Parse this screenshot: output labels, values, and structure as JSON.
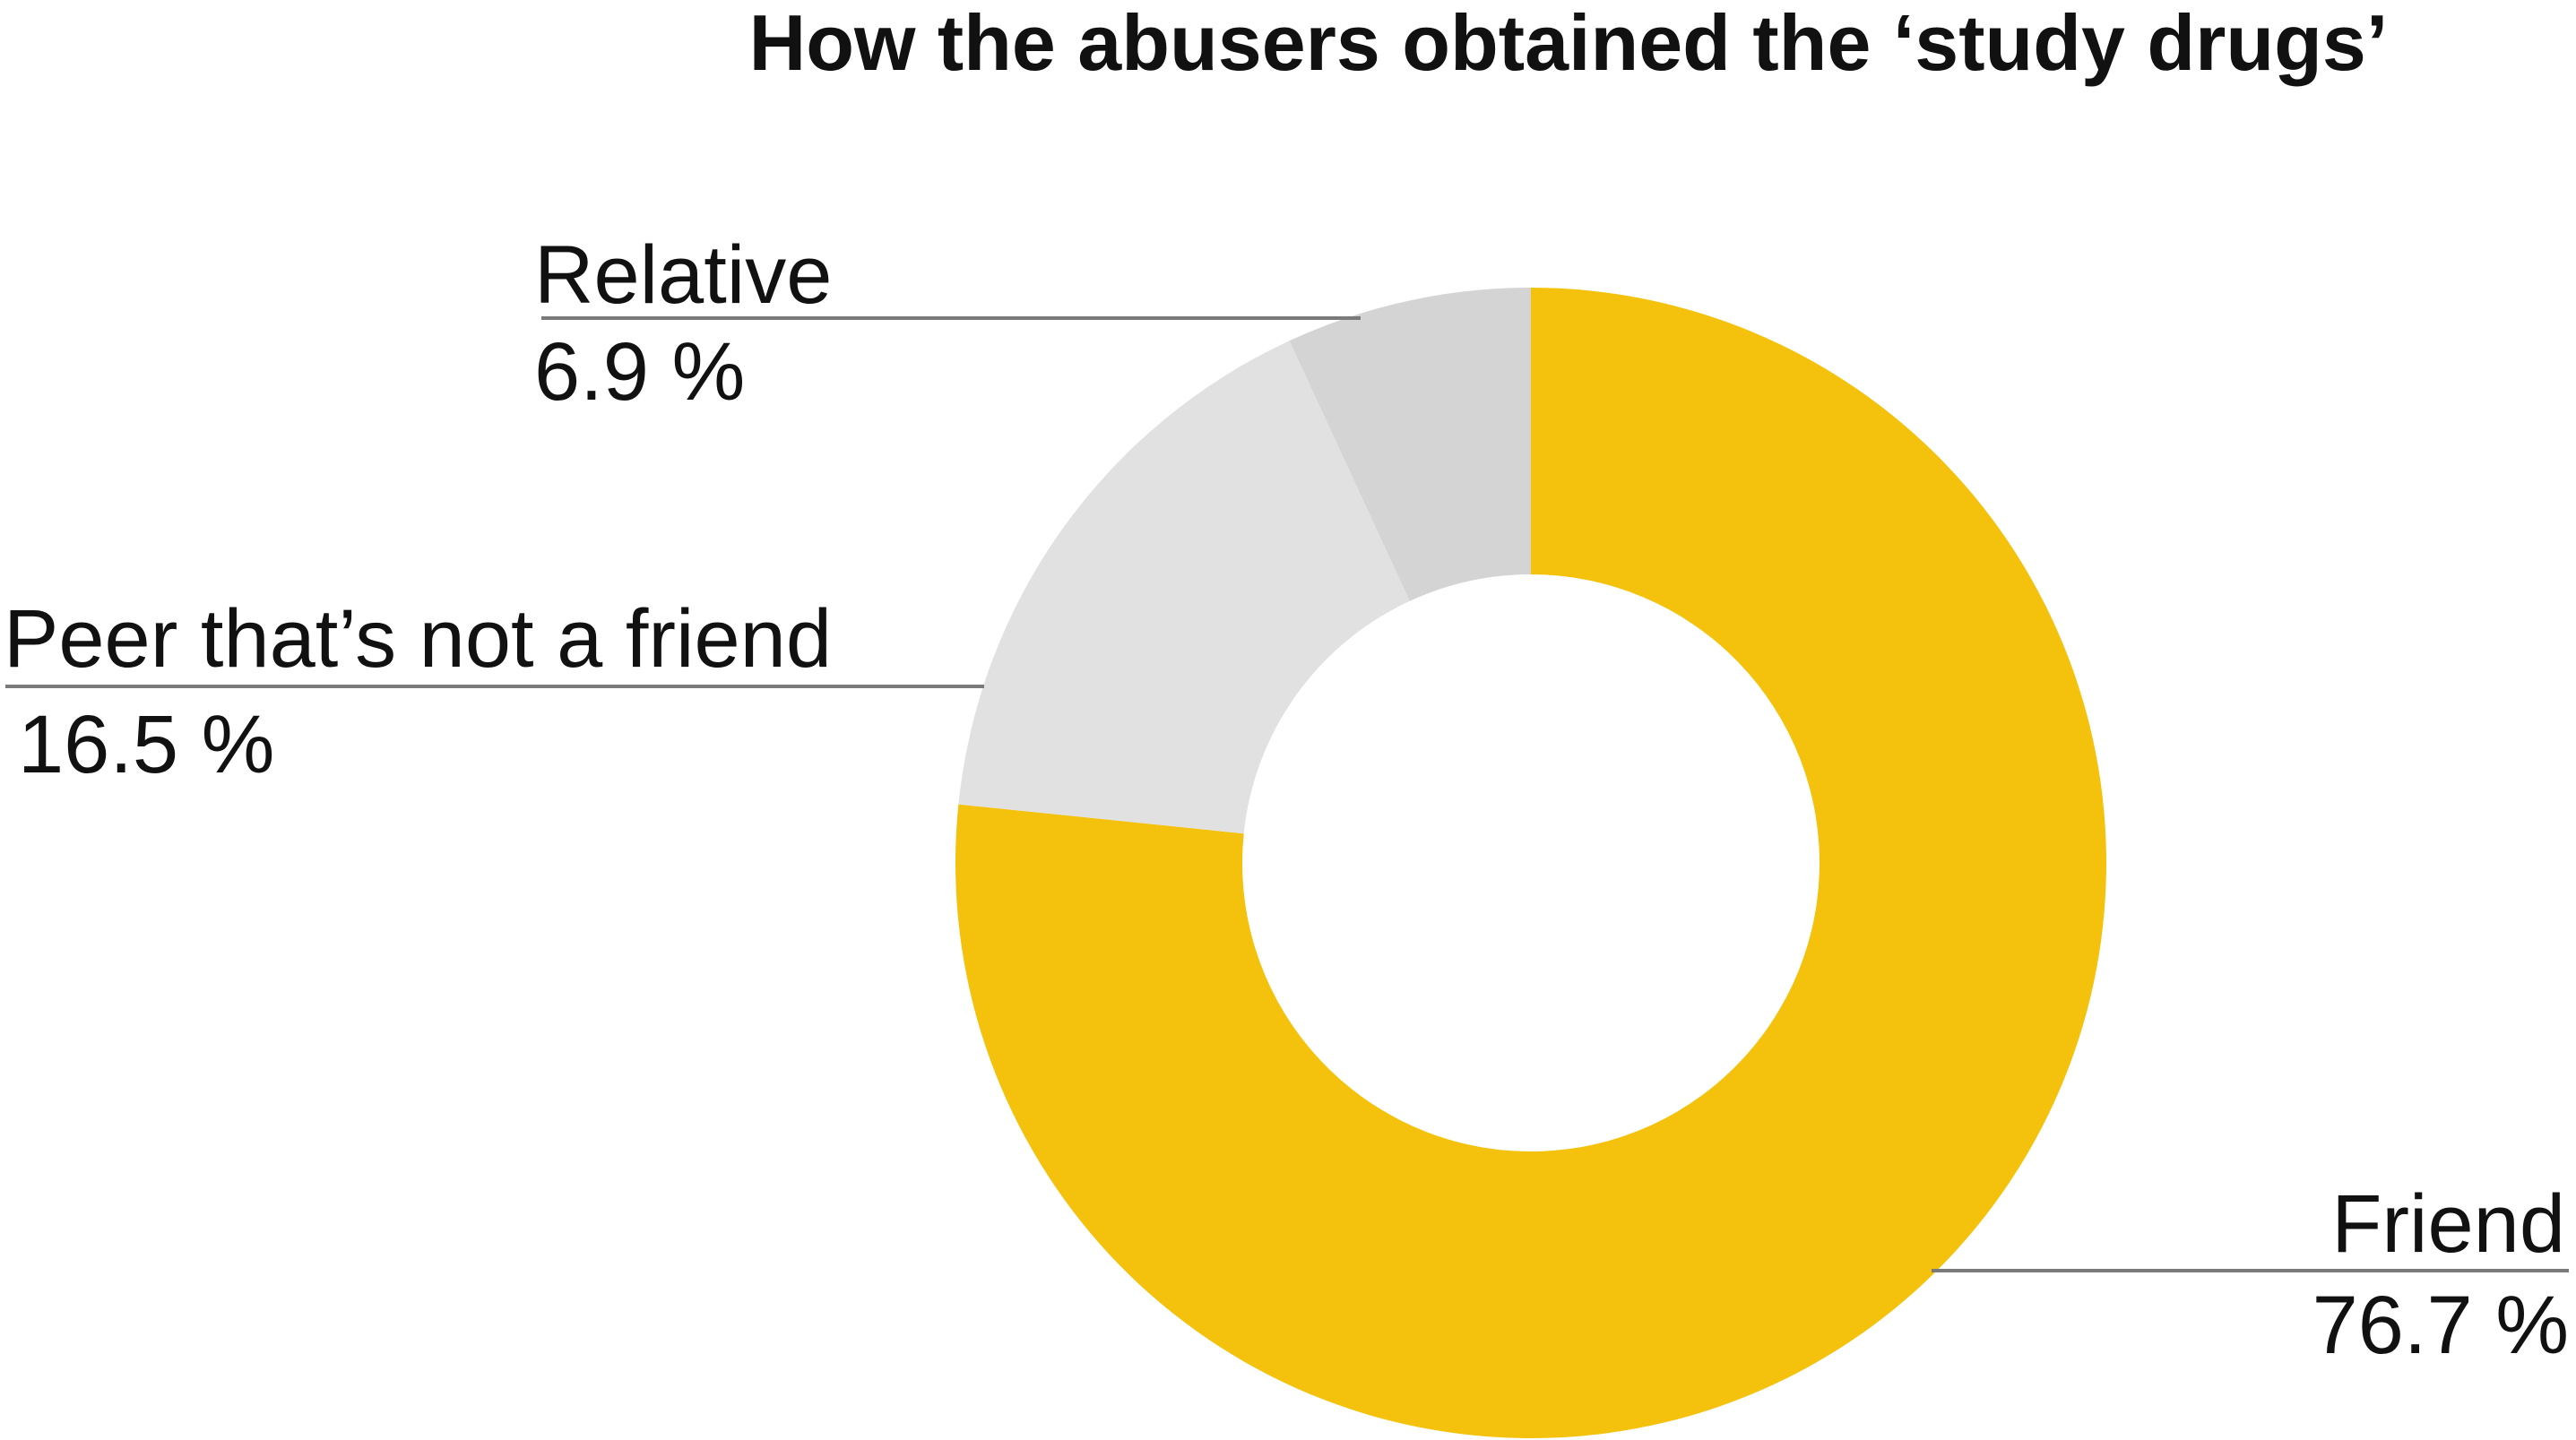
{
  "chart_data": {
    "type": "pie",
    "title": "How the abusers obtained the ‘study drugs’",
    "categories": [
      "Friend",
      "Peer that’s not a friend",
      "Relative"
    ],
    "values": [
      76.7,
      16.5,
      6.9
    ],
    "value_labels": [
      "76.7 %",
      "16.5 %",
      "6.9 %"
    ],
    "colors": [
      "#F4C20D",
      "#E1E1E1",
      "#D4D4D4"
    ],
    "donut": true,
    "start": "12 o'clock",
    "direction": "clockwise",
    "legend": "none",
    "label_placement": "outside with leader lines"
  }
}
